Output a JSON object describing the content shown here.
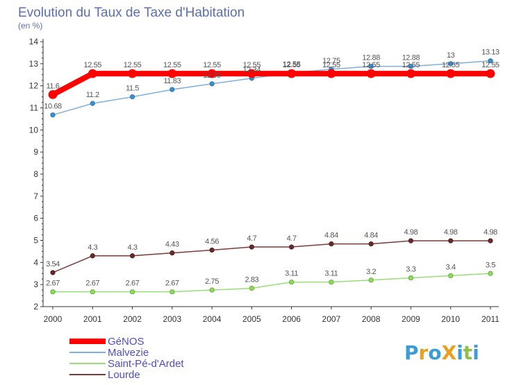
{
  "chart_data": {
    "type": "line",
    "title": "Evolution du Taux de Taxe d'Habitation",
    "subtitle": "(en %)",
    "xlabel": "",
    "ylabel": "",
    "x": [
      "2000",
      "2001",
      "2002",
      "2003",
      "2004",
      "2005",
      "2006",
      "2007",
      "2008",
      "2009",
      "2010",
      "2011"
    ],
    "ylim": [
      2,
      14
    ],
    "yticks": [
      2,
      3,
      4,
      5,
      6,
      7,
      8,
      9,
      10,
      11,
      12,
      13,
      14
    ],
    "grid": false,
    "legend_position": "bottom-left",
    "series": [
      {
        "name": "GéNOS",
        "color": "#ff0000",
        "values": [
          11.6,
          12.55,
          12.55,
          12.55,
          12.55,
          12.55,
          12.55,
          12.55,
          12.55,
          12.55,
          12.55,
          12.55
        ],
        "labels": [
          "11.6",
          "12.55",
          "12.55",
          "12.55",
          "12.55",
          "12.55",
          "12.55",
          "12.55",
          "12.55",
          "12.55",
          "12.55",
          "12.55"
        ]
      },
      {
        "name": "Malvezie",
        "color": "#7fb0d9",
        "values": [
          10.68,
          11.2,
          11.5,
          11.83,
          12.09,
          12.34,
          12.58,
          12.75,
          12.88,
          12.88,
          13,
          13.13
        ],
        "labels": [
          "10.68",
          "11.2",
          "11.5",
          "11.83",
          "12.09",
          "12.34",
          "12.58",
          "12.75",
          "12.88",
          "12.88",
          "13",
          "13.13"
        ]
      },
      {
        "name": "Saint-Pé-d'Ardet",
        "color": "#99dd77",
        "values": [
          2.67,
          2.67,
          2.67,
          2.67,
          2.75,
          2.83,
          3.11,
          3.11,
          3.2,
          3.3,
          3.4,
          3.5
        ],
        "labels": [
          "2.67",
          "2.67",
          "2.67",
          "2.67",
          "2.75",
          "2.83",
          "3.11",
          "3.11",
          "3.2",
          "3.3",
          "3.4",
          "3.5"
        ]
      },
      {
        "name": "Lourde",
        "color": "#7a3a3a",
        "values": [
          3.54,
          4.3,
          4.3,
          4.43,
          4.56,
          4.7,
          4.7,
          4.84,
          4.84,
          4.98,
          4.98,
          4.98
        ],
        "labels": [
          "3.54",
          "4.3",
          "4.3",
          "4.43",
          "4.56",
          "4.7",
          "4.7",
          "4.84",
          "4.84",
          "4.98",
          "4.98",
          "4.98"
        ]
      }
    ]
  },
  "branding": {
    "logo_text": "ProXiti",
    "logo_letters": [
      "P",
      "r",
      "o",
      "X",
      "i",
      "t",
      "i"
    ],
    "logo_colors": [
      "#3d9bd6",
      "#e8a020",
      "#3d9bd6",
      "#e8a020",
      "#3d9bd6",
      "#8bc34a",
      "#3d9bd6"
    ]
  }
}
